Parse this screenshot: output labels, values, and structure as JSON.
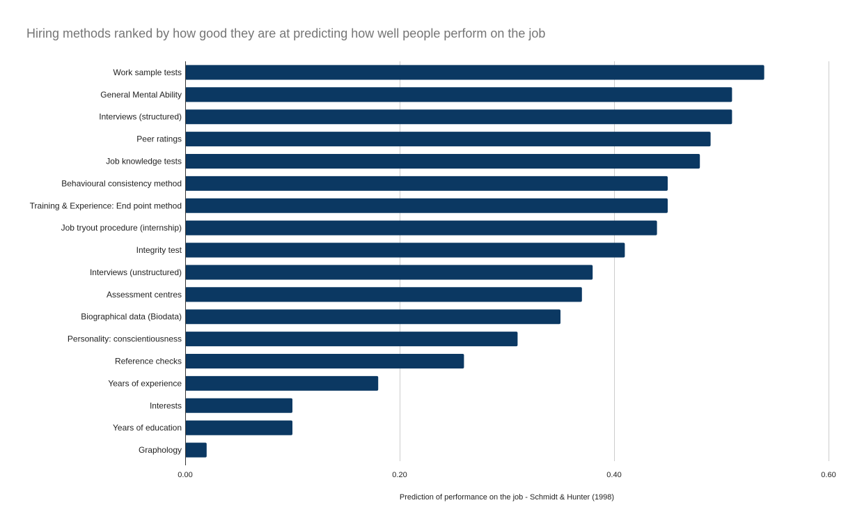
{
  "chart_data": {
    "type": "bar",
    "orientation": "horizontal",
    "title": "Hiring methods ranked by how good they are at predicting how well people perform on the job",
    "xlabel": "Prediction of performance on the job - Schmidt & Hunter (1998)",
    "ylabel": "",
    "xlim": [
      0,
      0.6
    ],
    "xticks": [
      "0.00",
      "0.20",
      "0.40",
      "0.60"
    ],
    "xtick_values": [
      0,
      0.2,
      0.4,
      0.6
    ],
    "grid": true,
    "legend": "none",
    "bar_color": "#0b3862",
    "categories": [
      "Work sample tests",
      "General Mental Ability",
      "Interviews (structured)",
      "Peer ratings",
      "Job knowledge tests",
      "Behavioural consistency method",
      "Training & Experience: End point method",
      "Job tryout procedure (internship)",
      "Integrity test",
      "Interviews (unstructured)",
      "Assessment centres",
      "Biographical data (Biodata)",
      "Personality: conscientiousness",
      "Reference checks",
      "Years of experience",
      "Interests",
      "Years of education",
      "Graphology"
    ],
    "values": [
      0.54,
      0.51,
      0.51,
      0.49,
      0.48,
      0.45,
      0.45,
      0.44,
      0.41,
      0.38,
      0.37,
      0.35,
      0.31,
      0.26,
      0.18,
      0.1,
      0.1,
      0.02
    ]
  }
}
